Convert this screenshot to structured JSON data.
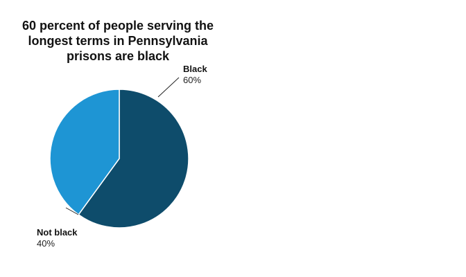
{
  "chart_data": {
    "type": "pie",
    "title": "60 percent of people serving the longest terms in Pennsylvania prisons are black",
    "slices": [
      {
        "label": "Black",
        "value": 60,
        "value_label": "60%",
        "color": "#0e4c6b"
      },
      {
        "label": "Not black",
        "value": 40,
        "value_label": "40%",
        "color": "#1e95d4"
      }
    ],
    "start_angle_deg": 0,
    "direction": "clockwise",
    "label_placement": "outside-with-leader-lines"
  }
}
